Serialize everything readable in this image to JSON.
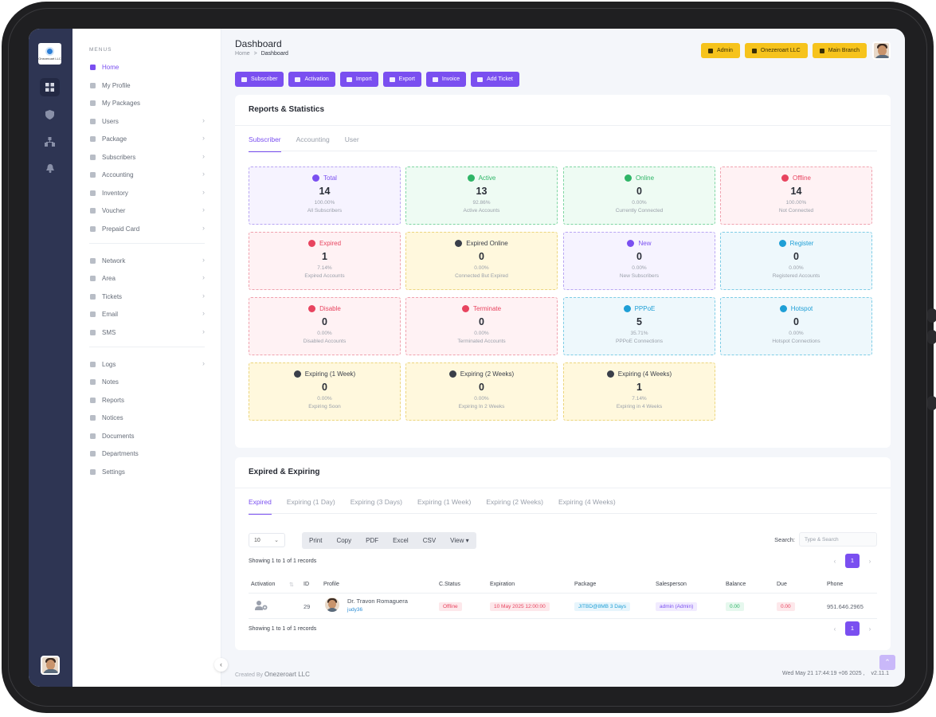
{
  "logo": {
    "text": "Onezeroart LLC"
  },
  "menu": {
    "header": "MENUS",
    "items": [
      {
        "label": "Home",
        "chevron": ""
      },
      {
        "label": "My Profile",
        "chevron": ""
      },
      {
        "label": "My Packages",
        "chevron": ""
      },
      {
        "label": "Users",
        "chevron": "›"
      },
      {
        "label": "Package",
        "chevron": "›"
      },
      {
        "label": "Subscribers",
        "chevron": "›"
      },
      {
        "label": "Accounting",
        "chevron": "›"
      },
      {
        "label": "Inventory",
        "chevron": "›"
      },
      {
        "label": "Voucher",
        "chevron": "›"
      },
      {
        "label": "Prepaid Card",
        "chevron": "›"
      },
      {
        "label": "Network",
        "chevron": "›"
      },
      {
        "label": "Area",
        "chevron": "›"
      },
      {
        "label": "Tickets",
        "chevron": "›"
      },
      {
        "label": "Email",
        "chevron": "›"
      },
      {
        "label": "SMS",
        "chevron": "›"
      },
      {
        "label": "Logs",
        "chevron": "›"
      },
      {
        "label": "Notes",
        "chevron": ""
      },
      {
        "label": "Reports",
        "chevron": ""
      },
      {
        "label": "Notices",
        "chevron": ""
      },
      {
        "label": "Documents",
        "chevron": ""
      },
      {
        "label": "Departments",
        "chevron": ""
      },
      {
        "label": "Settings",
        "chevron": ""
      }
    ]
  },
  "header": {
    "title": "Dashboard",
    "breadcrumb_home": "Home",
    "breadcrumb_sep": ">",
    "breadcrumb_current": "Dashboard",
    "buttons": [
      "Admin",
      "Onezeroart LLC",
      "Main Branch"
    ]
  },
  "actions": [
    "Subscriber",
    "Activation",
    "Import",
    "Export",
    "Invoice",
    "Add Ticket"
  ],
  "stats_card": {
    "title": "Reports & Statistics",
    "tabs": [
      "Subscriber",
      "Accounting",
      "User"
    ],
    "tiles": [
      {
        "label": "Total",
        "value": "14",
        "percent": "100.00%",
        "desc": "All Subscribers",
        "theme": "purple",
        "color": "#7a4ff0"
      },
      {
        "label": "Active",
        "value": "13",
        "percent": "92.86%",
        "desc": "Active Accounts",
        "theme": "green",
        "color": "#2fb567"
      },
      {
        "label": "Online",
        "value": "0",
        "percent": "0.00%",
        "desc": "Currently Connected",
        "theme": "green",
        "color": "#2fb567"
      },
      {
        "label": "Offline",
        "value": "14",
        "percent": "100.00%",
        "desc": "Not Connected",
        "theme": "red",
        "color": "#e8445f"
      },
      {
        "label": "Expired",
        "value": "1",
        "percent": "7.14%",
        "desc": "Expired Accounts",
        "theme": "red",
        "color": "#e8445f"
      },
      {
        "label": "Expired Online",
        "value": "0",
        "percent": "0.00%",
        "desc": "Connected But Expired",
        "theme": "yellow",
        "color": "#3a3f4a"
      },
      {
        "label": "New",
        "value": "0",
        "percent": "0.00%",
        "desc": "New Subscribers",
        "theme": "purple",
        "color": "#7a4ff0"
      },
      {
        "label": "Register",
        "value": "0",
        "percent": "0.00%",
        "desc": "Registered Accounts",
        "theme": "blue",
        "color": "#1e9fd6"
      },
      {
        "label": "Disable",
        "value": "0",
        "percent": "0.00%",
        "desc": "Disabled Accounts",
        "theme": "red",
        "color": "#e8445f"
      },
      {
        "label": "Terminate",
        "value": "0",
        "percent": "0.00%",
        "desc": "Terminated Accounts",
        "theme": "red",
        "color": "#e8445f"
      },
      {
        "label": "PPPoE",
        "value": "5",
        "percent": "35.71%",
        "desc": "PPPoE Connections",
        "theme": "blue",
        "color": "#1e9fd6"
      },
      {
        "label": "Hotspot",
        "value": "0",
        "percent": "0.00%",
        "desc": "Hotspot Connections",
        "theme": "blue",
        "color": "#1e9fd6"
      },
      {
        "label": "Expiring (1 Week)",
        "value": "0",
        "percent": "0.00%",
        "desc": "Expiring Soon",
        "theme": "yellow",
        "color": "#3a3f4a"
      },
      {
        "label": "Expiring (2 Weeks)",
        "value": "0",
        "percent": "0.00%",
        "desc": "Expiring In 2 Weeks",
        "theme": "yellow",
        "color": "#3a3f4a"
      },
      {
        "label": "Expiring (4 Weeks)",
        "value": "1",
        "percent": "7.14%",
        "desc": "Expiring in 4 Weeks",
        "theme": "yellow",
        "color": "#3a3f4a"
      }
    ]
  },
  "expired_card": {
    "title": "Expired & Expiring",
    "tabs": [
      "Expired",
      "Expiring (1 Day)",
      "Expiring (3 Days)",
      "Expiring (1 Week)",
      "Expiring (2 Weeks)",
      "Expiring (4 Weeks)"
    ],
    "page_size": "10",
    "export_buttons": [
      "Print",
      "Copy",
      "PDF",
      "Excel",
      "CSV",
      "View ▾"
    ],
    "search_label": "Search:",
    "search_placeholder": "Type & Search",
    "showing": "Showing 1 to 1 of 1 records",
    "page": "1",
    "columns": [
      "Activation",
      "ID",
      "Profile",
      "C.Status",
      "Expiration",
      "Package",
      "Salesperson",
      "Balance",
      "Due",
      "Phone"
    ],
    "row": {
      "id": "29",
      "name": "Dr. Travon Romaguera",
      "username": "judy36",
      "status": "Offline",
      "expiration": "10 May 2025 12:00:00",
      "package": "JITBD@8MB 3 Days",
      "salesperson": "admin (Admin)",
      "balance": "0.00",
      "due": "0.00",
      "phone": "951.646.2965"
    }
  },
  "footer": {
    "created_by": "Created By",
    "company": "Onezeroart LLC",
    "datetime": "Wed May 21 17:44:19 +06 2025 ,",
    "version": "v2.11.1"
  }
}
